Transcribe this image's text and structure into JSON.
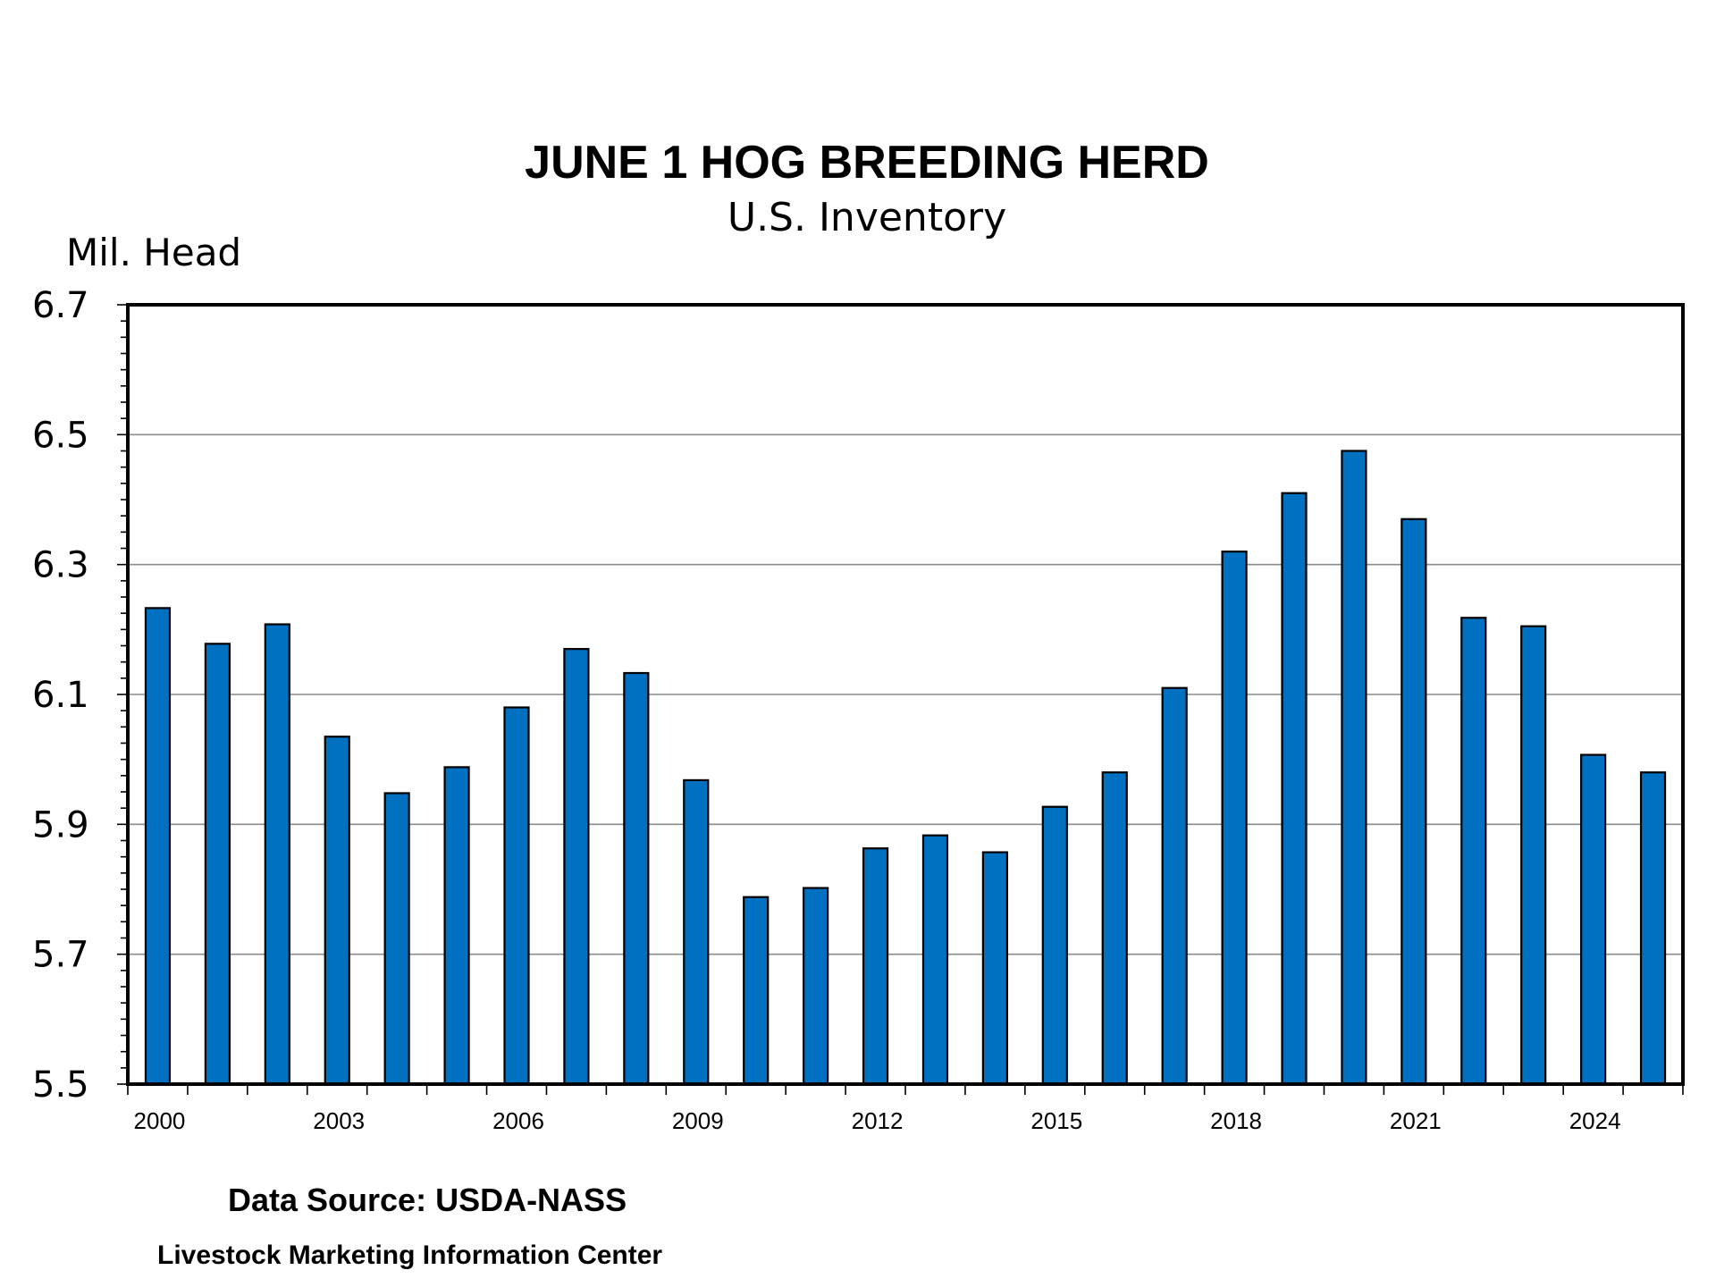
{
  "chart_data": {
    "type": "bar",
    "title": "JUNE 1 HOG BREEDING HERD",
    "subtitle": "U.S. Inventory",
    "ylabel": "Mil. Head",
    "xlabel": "",
    "ylim": [
      5.5,
      6.7
    ],
    "yticks": [
      "5.5",
      "5.7",
      "5.9",
      "6.1",
      "6.3",
      "6.5",
      "6.7"
    ],
    "grid": true,
    "categories": [
      "2000",
      "2001",
      "2002",
      "2003",
      "2004",
      "2005",
      "2006",
      "2007",
      "2008",
      "2009",
      "2010",
      "2011",
      "2012",
      "2013",
      "2014",
      "2015",
      "2016",
      "2017",
      "2018",
      "2019",
      "2020",
      "2021",
      "2022",
      "2023",
      "2024",
      "2025"
    ],
    "x_tick_labels": [
      "2000",
      "2003",
      "2006",
      "2009",
      "2012",
      "2015",
      "2018",
      "2021",
      "2024"
    ],
    "values": [
      6.233,
      6.178,
      6.208,
      6.035,
      5.948,
      5.988,
      6.08,
      6.17,
      6.133,
      5.968,
      5.788,
      5.802,
      5.863,
      5.883,
      5.857,
      5.927,
      5.98,
      6.11,
      6.32,
      6.41,
      6.475,
      6.37,
      6.218,
      6.205,
      6.007,
      5.98
    ],
    "bar_color": "#0070C0",
    "legend": "none"
  },
  "footer": {
    "source": "Data Source:  USDA-NASS",
    "credit": "Livestock Marketing Information Center"
  }
}
